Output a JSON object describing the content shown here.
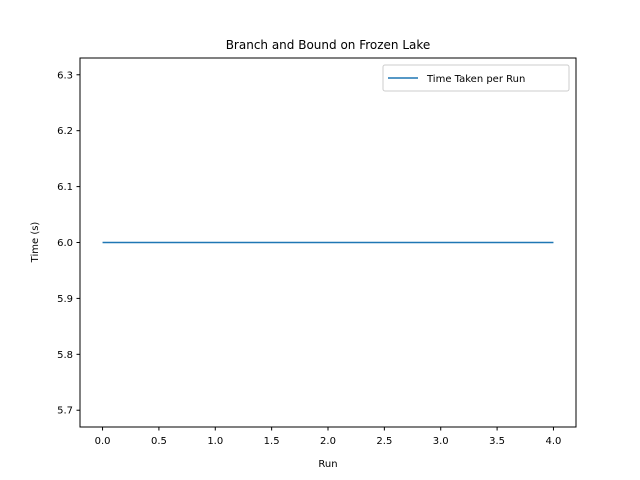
{
  "chart_data": {
    "type": "line",
    "title": "Branch and Bound on Frozen Lake",
    "xlabel": "Run",
    "ylabel": "Time (s)",
    "xlim": [
      -0.2,
      4.2
    ],
    "ylim": [
      5.67,
      6.33
    ],
    "xticks": [
      0.0,
      0.5,
      1.0,
      1.5,
      2.0,
      2.5,
      3.0,
      3.5,
      4.0
    ],
    "xtick_labels": [
      "0.0",
      "0.5",
      "1.0",
      "1.5",
      "2.0",
      "2.5",
      "3.0",
      "3.5",
      "4.0"
    ],
    "yticks": [
      5.7,
      5.8,
      5.9,
      6.0,
      6.1,
      6.2,
      6.3
    ],
    "ytick_labels": [
      "5.7",
      "5.8",
      "5.9",
      "6.0",
      "6.1",
      "6.2",
      "6.3"
    ],
    "grid": false,
    "legend_position": "top-right",
    "series": [
      {
        "name": "Time Taken per Run",
        "color": "#1f77b4",
        "x": [
          0,
          1,
          2,
          3,
          4
        ],
        "y": [
          6.0,
          6.0,
          6.0,
          6.0,
          6.0
        ]
      }
    ]
  }
}
